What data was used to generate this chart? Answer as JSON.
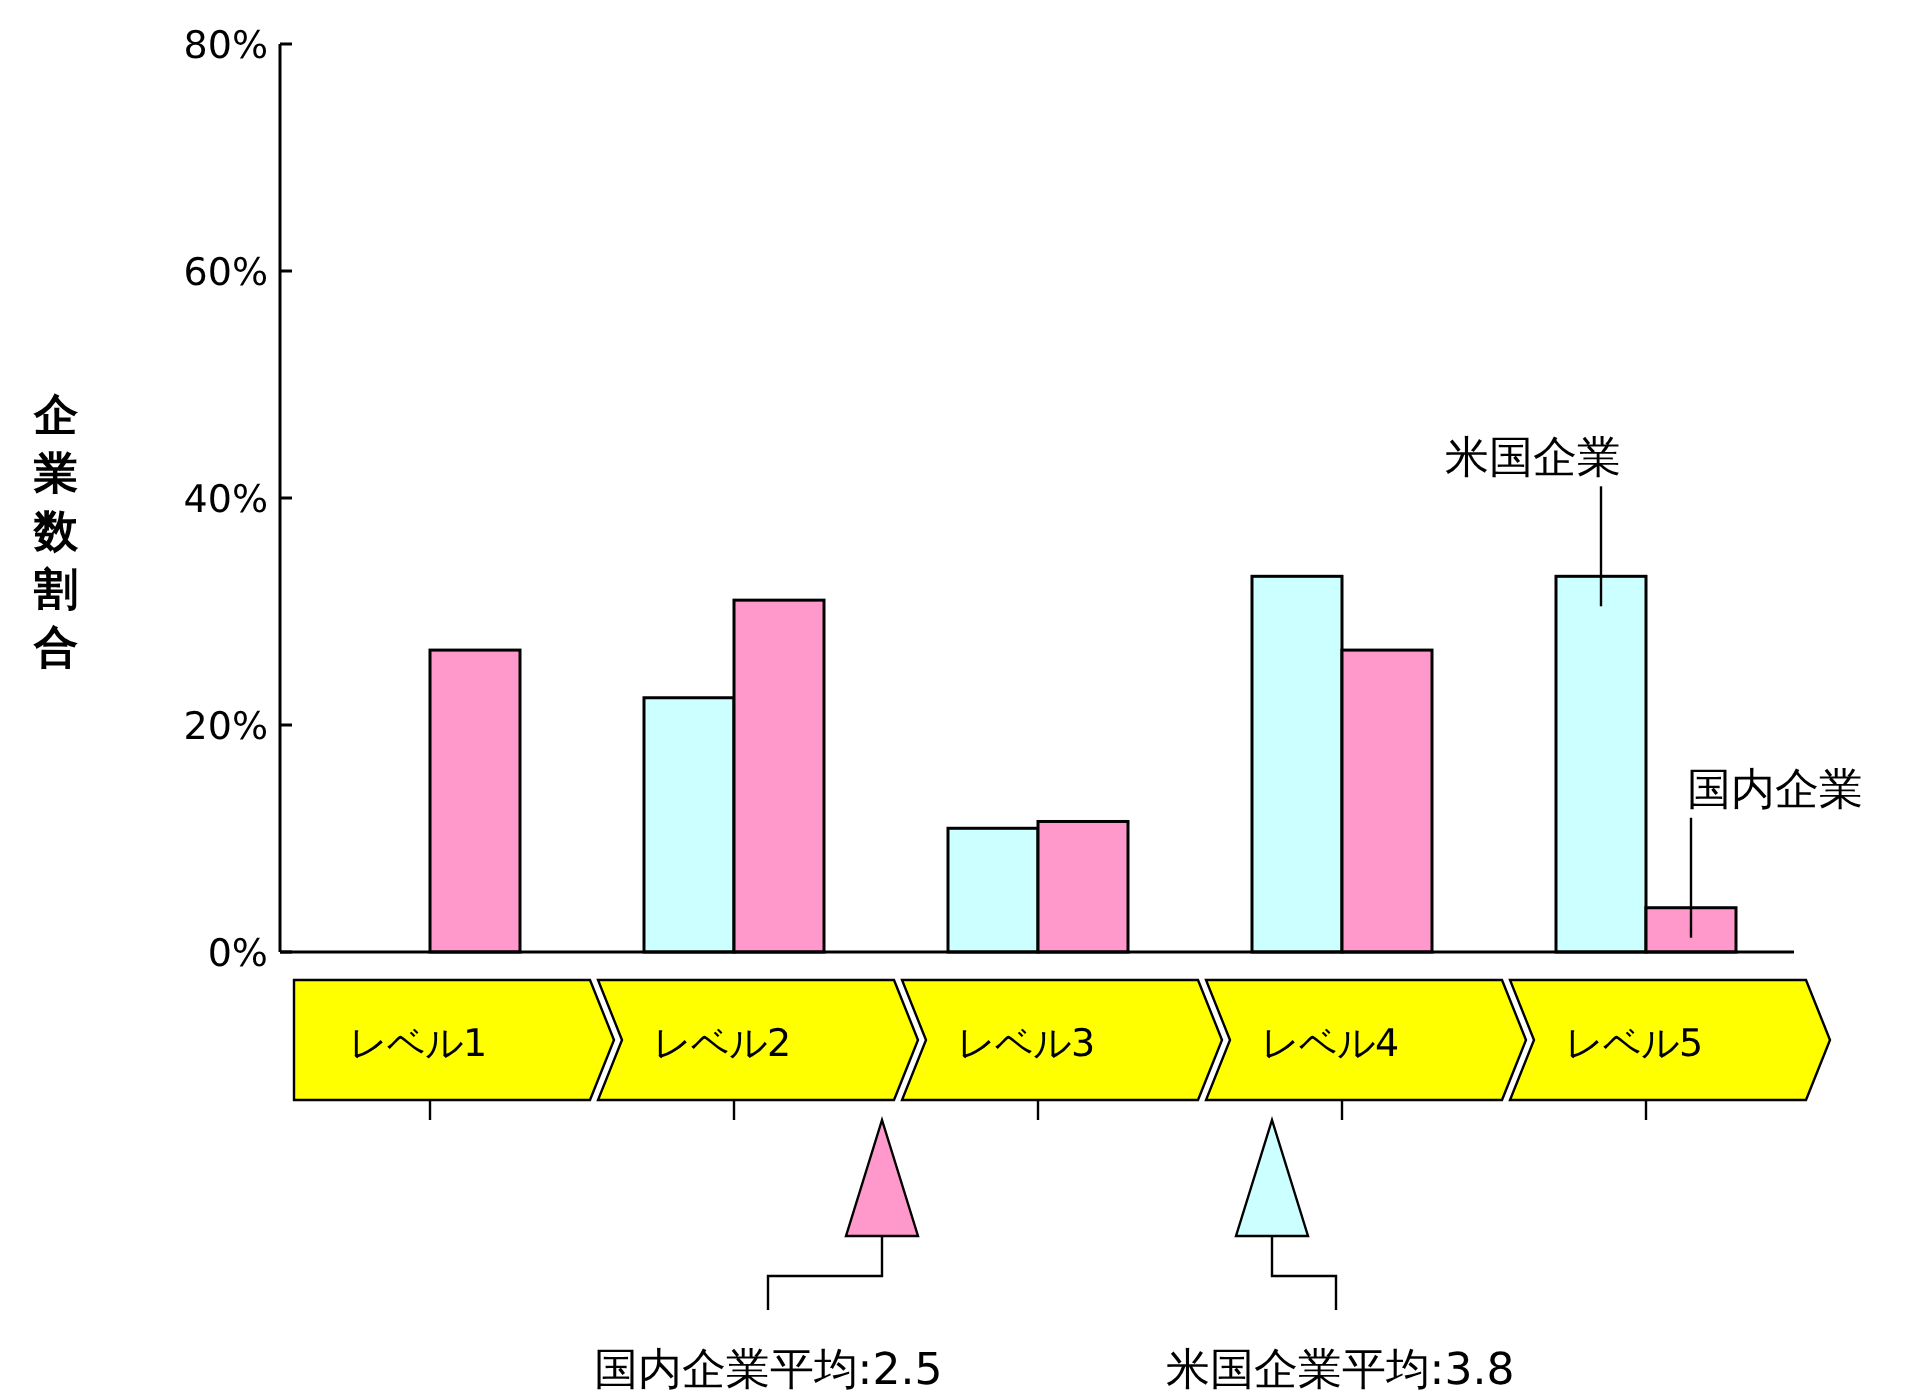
{
  "chart_data": {
    "type": "bar",
    "categories": [
      "レベル1",
      "レベル2",
      "レベル3",
      "レベル4",
      "レベル5"
    ],
    "series": [
      {
        "name": "米国企業",
        "color": "#ccffff",
        "values": [
          0,
          22.4,
          10.9,
          33.1,
          33.1
        ]
      },
      {
        "name": "国内企業",
        "color": "#ff99cc",
        "values": [
          26.6,
          31.0,
          11.5,
          26.6,
          3.9
        ]
      }
    ],
    "ylim": [
      0,
      80
    ],
    "yticks": [
      {
        "value": 0,
        "label": "0%"
      },
      {
        "value": 20,
        "label": "20%"
      },
      {
        "value": 40,
        "label": "40%"
      },
      {
        "value": 60,
        "label": "60%"
      },
      {
        "value": 80,
        "label": "80%"
      }
    ],
    "ylabel": "企業数割合",
    "annotations": [
      "国内企業平均:2.5",
      "米国企業平均:3.8"
    ],
    "grid": false
  }
}
